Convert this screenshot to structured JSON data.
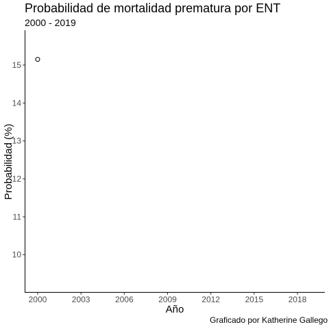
{
  "chart_data": {
    "type": "scatter",
    "title": "Probabilidad de mortalidad prematura por ENT",
    "subtitle": "2000 - 2019",
    "caption": "Graficado por Katherine Gallego",
    "xlabel": "Año",
    "ylabel": "Probabilidad (%)",
    "xlim": [
      1999.1,
      2019.9
    ],
    "ylim": [
      9.0,
      15.92
    ],
    "x_ticks": [
      2000,
      2003,
      2006,
      2009,
      2012,
      2015,
      2018
    ],
    "y_ticks": [
      10,
      11,
      12,
      13,
      14,
      15
    ],
    "grid": false,
    "points": [
      {
        "x": 2000,
        "y": 15.15
      }
    ]
  }
}
